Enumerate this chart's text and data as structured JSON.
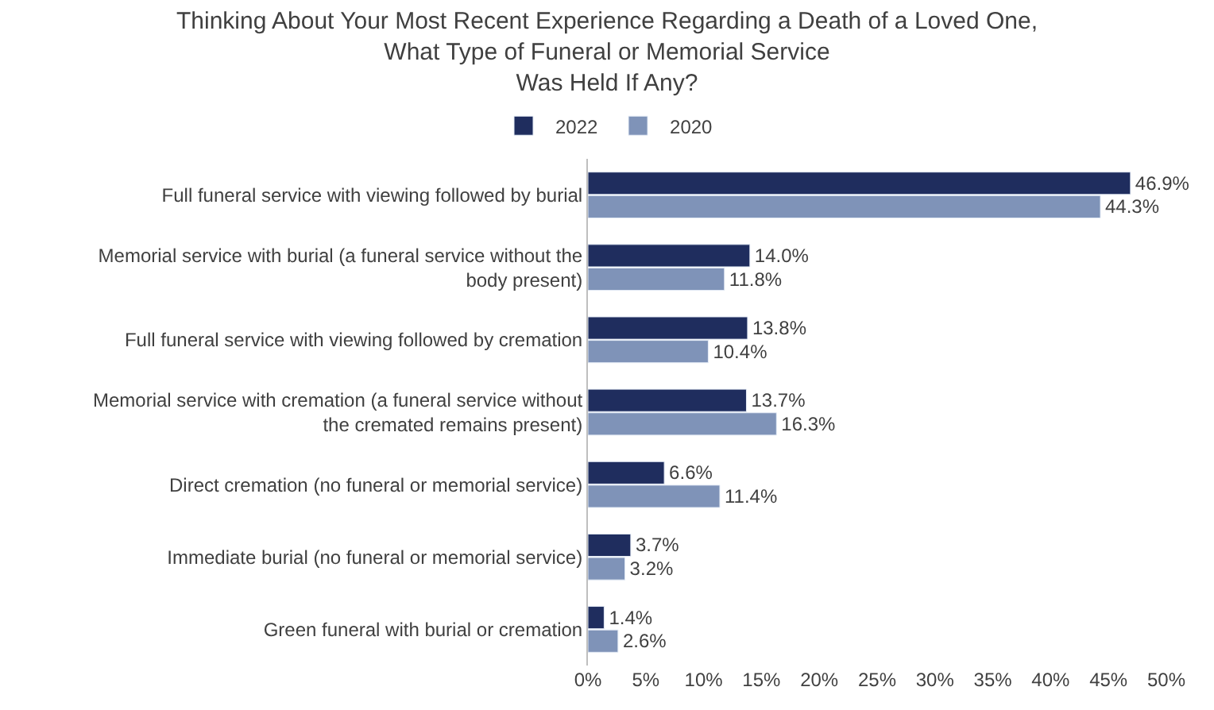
{
  "chart_data": {
    "type": "bar",
    "orientation": "horizontal",
    "title": "Thinking About Your Most Recent Experience Regarding a Death of a Loved One,\nWhat Type of Funeral or Memorial Service\nWas Held If Any?",
    "categories": [
      "Full funeral service with viewing followed by burial",
      "Memorial service with burial (a funeral service without the\nbody present)",
      "Full funeral service with viewing followed by cremation",
      "Memorial service with cremation (a funeral service without\nthe cremated remains present)",
      "Direct cremation (no funeral or memorial service)",
      "Immediate burial (no funeral or memorial service)",
      "Green funeral with burial or cremation"
    ],
    "series": [
      {
        "name": "2022",
        "color": "#1f2d5e",
        "values": [
          46.9,
          14.0,
          13.8,
          13.7,
          6.6,
          3.7,
          1.4
        ],
        "value_labels": [
          "46.9%",
          "14.0%",
          "13.8%",
          "13.7%",
          "6.6%",
          "3.7%",
          "1.4%"
        ]
      },
      {
        "name": "2020",
        "color": "#7f93b8",
        "values": [
          44.3,
          11.8,
          10.4,
          16.3,
          11.4,
          3.2,
          2.6
        ],
        "value_labels": [
          "44.3%",
          "11.8%",
          "10.4%",
          "16.3%",
          "11.4%",
          "3.2%",
          "2.6%"
        ]
      }
    ],
    "xlim": [
      0,
      50
    ],
    "xticks": [
      {
        "value": 0,
        "label": "0%"
      },
      {
        "value": 5,
        "label": "5%"
      },
      {
        "value": 10,
        "label": "10%"
      },
      {
        "value": 15,
        "label": "15%"
      },
      {
        "value": 20,
        "label": "20%"
      },
      {
        "value": 25,
        "label": "25%"
      },
      {
        "value": 30,
        "label": "30%"
      },
      {
        "value": 35,
        "label": "35%"
      },
      {
        "value": 40,
        "label": "40%"
      },
      {
        "value": 45,
        "label": "45%"
      },
      {
        "value": 50,
        "label": "50%"
      }
    ],
    "legend": "top"
  }
}
